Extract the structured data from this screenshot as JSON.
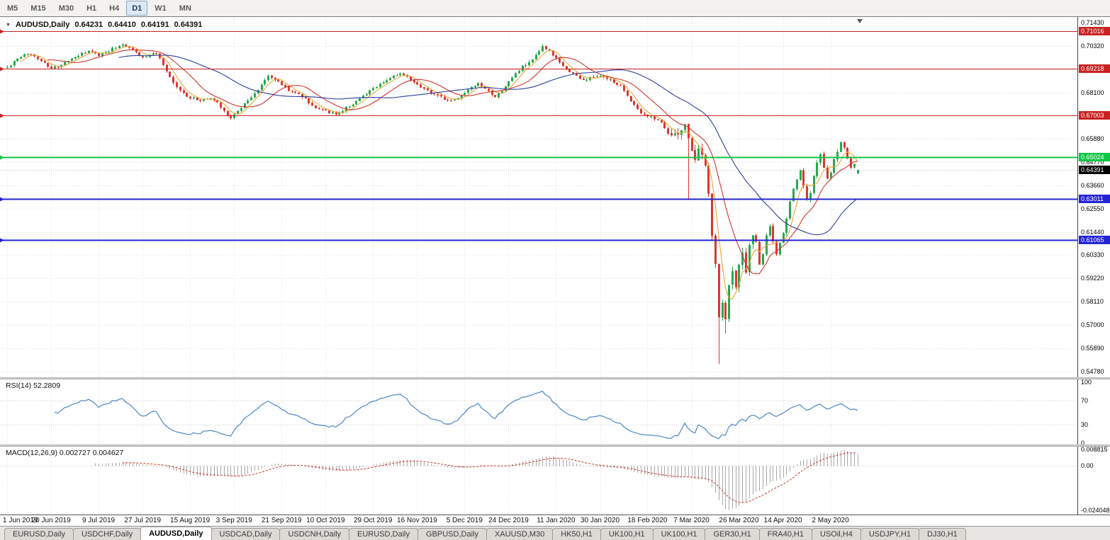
{
  "toolbar": {
    "timeframes": [
      {
        "label": "M5",
        "active": false
      },
      {
        "label": "M15",
        "active": false
      },
      {
        "label": "M30",
        "active": false
      },
      {
        "label": "H1",
        "active": false
      },
      {
        "label": "H4",
        "active": false
      },
      {
        "label": "D1",
        "active": true
      },
      {
        "label": "W1",
        "active": false
      },
      {
        "label": "MN",
        "active": false
      }
    ]
  },
  "chart_header": {
    "dropdown_icon": "▼",
    "symbol": "AUDUSD,Daily",
    "open": "0.64231",
    "high": "0.64410",
    "low": "0.64191",
    "close": "0.64391"
  },
  "price_axis": {
    "ticks": [
      "0.71430",
      "0.70320",
      "0.69210",
      "0.68100",
      "0.66990",
      "0.65880",
      "0.64770",
      "0.63660",
      "0.62550",
      "0.61440",
      "0.60330",
      "0.59220",
      "0.58110",
      "0.57000",
      "0.55890",
      "0.54780"
    ]
  },
  "horizontal_lines": [
    {
      "value": "0.71016",
      "price": 0.71016,
      "color": "#c92222",
      "width": 1
    },
    {
      "value": "0.69218",
      "price": 0.69218,
      "color": "#c92222",
      "width": 1
    },
    {
      "value": "0.67003",
      "price": 0.67003,
      "color": "#c92222",
      "width": 1
    },
    {
      "value": "0.65024",
      "price": 0.65024,
      "color": "#0fc544",
      "width": 2
    },
    {
      "value": "0.63011",
      "price": 0.63011,
      "color": "#2424d4",
      "width": 2
    },
    {
      "value": "0.61065",
      "price": 0.61065,
      "color": "#2424d4",
      "width": 2
    }
  ],
  "current_price": {
    "value": "0.64391",
    "bg": "#000000"
  },
  "rsi_pane": {
    "label": "RSI(14) 52.2809",
    "axis_labels": [
      "100",
      "70",
      "30",
      "0"
    ],
    "levels": [
      70,
      30
    ],
    "line_color": "#4a87c7"
  },
  "macd_pane": {
    "label": "MACD(12,26,9) 0.002727 0.004627",
    "axis_labels": [
      "0.008815",
      "0.00",
      "-0.0240482"
    ],
    "histogram_color": "#a8a8a8",
    "signal_color": "#c43a31"
  },
  "date_axis": {
    "labels": [
      "1 Jun 2019",
      "20 Jun 2019",
      "9 Jul 2019",
      "27 Jul 2019",
      "15 Aug 2019",
      "3 Sep 2019",
      "21 Sep 2019",
      "10 Oct 2019",
      "29 Oct 2019",
      "16 Nov 2019",
      "5 Dec 2019",
      "24 Dec 2019",
      "11 Jan 2020",
      "30 Jan 2020",
      "18 Feb 2020",
      "7 Mar 2020",
      "26 Mar 2020",
      "14 Apr 2020",
      "2 May 2020"
    ],
    "bar_indices": [
      0,
      13,
      27,
      40,
      54,
      67,
      81,
      94,
      108,
      121,
      135,
      148,
      162,
      175,
      189,
      202,
      216,
      229,
      243
    ]
  },
  "tabs": [
    {
      "label": "EURUSD,Daily",
      "active": false
    },
    {
      "label": "USDCHF,Daily",
      "active": false
    },
    {
      "label": "AUDUSD,Daily",
      "active": true
    },
    {
      "label": "USDCAD,Daily",
      "active": false
    },
    {
      "label": "USDCNH,Daily",
      "active": false
    },
    {
      "label": "EURUSD,Daily",
      "active": false
    },
    {
      "label": "GBPUSD,Daily",
      "active": false
    },
    {
      "label": "XAUUSD,M30",
      "active": false
    },
    {
      "label": "HK50,H1",
      "active": false
    },
    {
      "label": "UK100,H1",
      "active": false
    },
    {
      "label": "UK100,H1",
      "active": false
    },
    {
      "label": "GER30,H1",
      "active": false
    },
    {
      "label": "FRA40,H1",
      "active": false
    },
    {
      "label": "USOil,H4",
      "active": false
    },
    {
      "label": "USDJPY,H1",
      "active": false
    },
    {
      "label": "DJ30,H1",
      "active": false
    }
  ],
  "chart_data": {
    "type": "candlestick",
    "symbol": "AUDUSD",
    "timeframe": "Daily",
    "bars": 252,
    "y_range": [
      0.545,
      0.717
    ],
    "ohlc_display": {
      "open": 0.64231,
      "high": 0.6441,
      "low": 0.64191,
      "close": 0.64391
    },
    "colors": {
      "bull": "#28a74e",
      "bear": "#df352f"
    },
    "price_anchors": [
      [
        0,
        0.693
      ],
      [
        3,
        0.6968
      ],
      [
        6,
        0.6997
      ],
      [
        9,
        0.6975
      ],
      [
        13,
        0.6922
      ],
      [
        16,
        0.694
      ],
      [
        20,
        0.698
      ],
      [
        24,
        0.7006
      ],
      [
        27,
        0.6988
      ],
      [
        31,
        0.7018
      ],
      [
        34,
        0.7042
      ],
      [
        37,
        0.7015
      ],
      [
        40,
        0.6976
      ],
      [
        44,
        0.7
      ],
      [
        47,
        0.6905
      ],
      [
        50,
        0.6832
      ],
      [
        53,
        0.6792
      ],
      [
        57,
        0.6772
      ],
      [
        60,
        0.6782
      ],
      [
        62,
        0.676
      ],
      [
        66,
        0.6686
      ],
      [
        70,
        0.6758
      ],
      [
        74,
        0.682
      ],
      [
        77,
        0.6892
      ],
      [
        80,
        0.686
      ],
      [
        83,
        0.6822
      ],
      [
        87,
        0.6792
      ],
      [
        90,
        0.6746
      ],
      [
        94,
        0.6722
      ],
      [
        97,
        0.6703
      ],
      [
        100,
        0.6736
      ],
      [
        104,
        0.6776
      ],
      [
        108,
        0.683
      ],
      [
        112,
        0.6872
      ],
      [
        115,
        0.6892
      ],
      [
        117,
        0.6898
      ],
      [
        120,
        0.6862
      ],
      [
        123,
        0.6828
      ],
      [
        127,
        0.6792
      ],
      [
        130,
        0.6772
      ],
      [
        133,
        0.678
      ],
      [
        136,
        0.6822
      ],
      [
        139,
        0.6848
      ],
      [
        142,
        0.6812
      ],
      [
        144,
        0.6784
      ],
      [
        147,
        0.684
      ],
      [
        150,
        0.69
      ],
      [
        152,
        0.6932
      ],
      [
        155,
        0.6962
      ],
      [
        158,
        0.7026
      ],
      [
        160,
        0.7005
      ],
      [
        163,
        0.6952
      ],
      [
        166,
        0.6908
      ],
      [
        170,
        0.6868
      ],
      [
        173,
        0.6882
      ],
      [
        175,
        0.6893
      ],
      [
        178,
        0.6866
      ],
      [
        181,
        0.684
      ],
      [
        184,
        0.6772
      ],
      [
        187,
        0.6712
      ],
      [
        190,
        0.6694
      ],
      [
        193,
        0.6672
      ],
      [
        196,
        0.659
      ],
      [
        198,
        0.6625
      ],
      [
        200,
        0.6652
      ],
      [
        201,
        0.6585
      ],
      [
        202,
        0.654
      ],
      [
        203,
        0.6495
      ],
      [
        204,
        0.6552
      ],
      [
        205,
        0.65
      ],
      [
        206,
        0.6452
      ],
      [
        207,
        0.634
      ],
      [
        208,
        0.612
      ],
      [
        209,
        0.5985
      ],
      [
        210,
        0.5745
      ],
      [
        211,
        0.5815
      ],
      [
        212,
        0.5725
      ],
      [
        213,
        0.5892
      ],
      [
        214,
        0.5952
      ],
      [
        215,
        0.588
      ],
      [
        216,
        0.5982
      ],
      [
        217,
        0.6032
      ],
      [
        218,
        0.5962
      ],
      [
        219,
        0.6082
      ],
      [
        220,
        0.6132
      ],
      [
        221,
        0.609
      ],
      [
        222,
        0.5992
      ],
      [
        223,
        0.6034
      ],
      [
        224,
        0.6122
      ],
      [
        225,
        0.6172
      ],
      [
        226,
        0.6102
      ],
      [
        227,
        0.6034
      ],
      [
        228,
        0.6082
      ],
      [
        229,
        0.6142
      ],
      [
        230,
        0.6204
      ],
      [
        231,
        0.6282
      ],
      [
        232,
        0.6352
      ],
      [
        233,
        0.6392
      ],
      [
        234,
        0.6444
      ],
      [
        235,
        0.6354
      ],
      [
        236,
        0.6292
      ],
      [
        237,
        0.6334
      ],
      [
        238,
        0.6404
      ],
      [
        239,
        0.6472
      ],
      [
        240,
        0.6512
      ],
      [
        241,
        0.6452
      ],
      [
        242,
        0.6392
      ],
      [
        243,
        0.6434
      ],
      [
        244,
        0.6484
      ],
      [
        245,
        0.6534
      ],
      [
        246,
        0.6572
      ],
      [
        247,
        0.6542
      ],
      [
        248,
        0.6492
      ],
      [
        249,
        0.6454
      ],
      [
        250,
        0.647
      ],
      [
        251,
        0.6439
      ]
    ],
    "spikes": [
      {
        "i": 201,
        "low": 0.63
      },
      {
        "i": 210,
        "low": 0.5513
      },
      {
        "i": 212,
        "low": 0.566
      }
    ],
    "volatility": {
      "base": 0.0011,
      "crash_start": 196,
      "crash_end": 222,
      "crash_mult": 2.6,
      "post_end": 245,
      "post_mult": 1.5
    },
    "last_candle": {
      "o": 0.64231,
      "h": 0.6441,
      "l": 0.64191,
      "c": 0.64391
    },
    "moving_averages": [
      {
        "period": 5,
        "color": "#e8a832"
      },
      {
        "period": 13,
        "color": "#cf352c"
      },
      {
        "period": 34,
        "color": "#2c3f9c"
      }
    ],
    "rsi": {
      "period": 14,
      "current": 52.2809
    },
    "macd": {
      "fast": 12,
      "slow": 26,
      "signal": 9,
      "current": [
        0.002727,
        0.004627
      ]
    }
  }
}
